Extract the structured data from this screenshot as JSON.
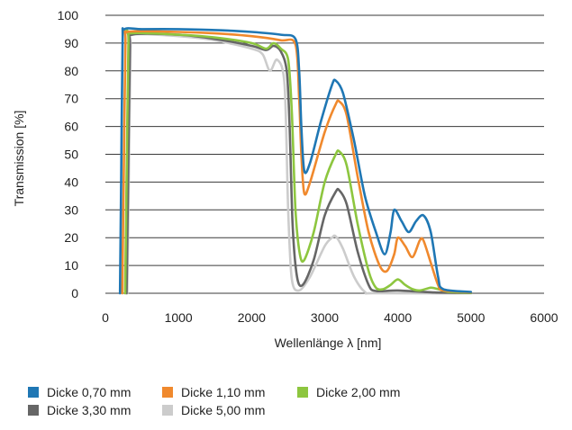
{
  "chart_data": {
    "type": "line",
    "title": "",
    "xlabel": "Wellenlänge λ [nm]",
    "ylabel": "Transmission [%]",
    "xlim": [
      0,
      6000
    ],
    "ylim": [
      0,
      100
    ],
    "x_ticks": [
      0,
      1000,
      2000,
      3000,
      4000,
      5000,
      6000
    ],
    "y_ticks": [
      0,
      10,
      20,
      30,
      40,
      50,
      60,
      70,
      80,
      90,
      100
    ],
    "x_tick_labels": [
      "0",
      "1000",
      "2000",
      "3000",
      "4000",
      "5000",
      "6000"
    ],
    "y_tick_labels": [
      "0",
      "10",
      "20",
      "30",
      "40",
      "50",
      "60",
      "70",
      "80",
      "90",
      "100"
    ],
    "grid": "horizontal",
    "legend_position": "bottom-left",
    "series": [
      {
        "name": "Dicke 0,70 mm",
        "color": "#1f77b4",
        "points": [
          [
            200,
            0
          ],
          [
            215,
            40
          ],
          [
            235,
            90
          ],
          [
            260,
            95
          ],
          [
            500,
            95
          ],
          [
            1000,
            95
          ],
          [
            1500,
            94.7
          ],
          [
            2000,
            94
          ],
          [
            2400,
            93
          ],
          [
            2600,
            91.5
          ],
          [
            2650,
            80
          ],
          [
            2680,
            60
          ],
          [
            2720,
            44
          ],
          [
            2800,
            47
          ],
          [
            2950,
            62
          ],
          [
            3100,
            75
          ],
          [
            3150,
            76.5
          ],
          [
            3250,
            72
          ],
          [
            3400,
            55
          ],
          [
            3550,
            35
          ],
          [
            3700,
            22
          ],
          [
            3820,
            14
          ],
          [
            3900,
            22
          ],
          [
            3950,
            30
          ],
          [
            4050,
            26
          ],
          [
            4150,
            22
          ],
          [
            4250,
            26
          ],
          [
            4350,
            28
          ],
          [
            4450,
            22
          ],
          [
            4550,
            6
          ],
          [
            4620,
            1.5
          ],
          [
            5000,
            0.5
          ]
        ]
      },
      {
        "name": "Dicke 1,10 mm",
        "color": "#f0892d",
        "points": [
          [
            230,
            0
          ],
          [
            250,
            40
          ],
          [
            275,
            90
          ],
          [
            300,
            94
          ],
          [
            1000,
            94
          ],
          [
            1500,
            93.5
          ],
          [
            2000,
            92.5
          ],
          [
            2400,
            91
          ],
          [
            2600,
            89.5
          ],
          [
            2650,
            70
          ],
          [
            2680,
            50
          ],
          [
            2720,
            36
          ],
          [
            2800,
            40
          ],
          [
            3000,
            58
          ],
          [
            3150,
            68
          ],
          [
            3200,
            69
          ],
          [
            3300,
            64
          ],
          [
            3450,
            42
          ],
          [
            3600,
            22
          ],
          [
            3750,
            10
          ],
          [
            3850,
            8
          ],
          [
            3950,
            14
          ],
          [
            4000,
            20
          ],
          [
            4100,
            17
          ],
          [
            4200,
            13
          ],
          [
            4300,
            19
          ],
          [
            4350,
            19
          ],
          [
            4450,
            11
          ],
          [
            4550,
            3
          ],
          [
            4620,
            1
          ],
          [
            5000,
            0.4
          ]
        ]
      },
      {
        "name": "Dicke 2,00 mm",
        "color": "#8dc63f",
        "points": [
          [
            270,
            0
          ],
          [
            290,
            40
          ],
          [
            315,
            90
          ],
          [
            340,
            93.5
          ],
          [
            1000,
            93
          ],
          [
            1500,
            92
          ],
          [
            2000,
            90
          ],
          [
            2200,
            88
          ],
          [
            2300,
            90
          ],
          [
            2400,
            88
          ],
          [
            2500,
            84
          ],
          [
            2550,
            65
          ],
          [
            2600,
            30
          ],
          [
            2660,
            14
          ],
          [
            2720,
            12
          ],
          [
            2850,
            22
          ],
          [
            3000,
            40
          ],
          [
            3150,
            50
          ],
          [
            3200,
            51
          ],
          [
            3300,
            46
          ],
          [
            3450,
            25
          ],
          [
            3600,
            8
          ],
          [
            3700,
            2
          ],
          [
            3800,
            1.5
          ],
          [
            3900,
            3
          ],
          [
            4000,
            5
          ],
          [
            4100,
            3
          ],
          [
            4200,
            1.5
          ],
          [
            4300,
            1
          ],
          [
            4450,
            2
          ],
          [
            4550,
            1.5
          ],
          [
            4700,
            0.5
          ],
          [
            5000,
            0.2
          ]
        ]
      },
      {
        "name": "Dicke 3,30 mm",
        "color": "#666666",
        "points": [
          [
            290,
            0
          ],
          [
            310,
            40
          ],
          [
            335,
            88
          ],
          [
            360,
            93
          ],
          [
            1000,
            93
          ],
          [
            1500,
            91.5
          ],
          [
            2000,
            89
          ],
          [
            2200,
            87.5
          ],
          [
            2300,
            89
          ],
          [
            2400,
            87
          ],
          [
            2480,
            80
          ],
          [
            2520,
            60
          ],
          [
            2560,
            25
          ],
          [
            2620,
            6
          ],
          [
            2700,
            3
          ],
          [
            2850,
            12
          ],
          [
            3000,
            28
          ],
          [
            3150,
            36.5
          ],
          [
            3200,
            37
          ],
          [
            3300,
            32
          ],
          [
            3450,
            15
          ],
          [
            3600,
            3
          ],
          [
            3700,
            0.8
          ],
          [
            4000,
            1
          ],
          [
            4500,
            0.3
          ],
          [
            5000,
            0.1
          ]
        ]
      },
      {
        "name": "Dicke 5,00 mm",
        "color": "#cccccc",
        "points": [
          [
            300,
            0
          ],
          [
            320,
            40
          ],
          [
            345,
            88
          ],
          [
            370,
            93
          ],
          [
            1000,
            92.5
          ],
          [
            1500,
            91
          ],
          [
            2000,
            88
          ],
          [
            2150,
            86
          ],
          [
            2250,
            80
          ],
          [
            2350,
            84
          ],
          [
            2450,
            75
          ],
          [
            2500,
            30
          ],
          [
            2550,
            5
          ],
          [
            2650,
            1
          ],
          [
            2800,
            6
          ],
          [
            3000,
            17
          ],
          [
            3100,
            20
          ],
          [
            3150,
            20.5
          ],
          [
            3250,
            16
          ],
          [
            3400,
            6
          ],
          [
            3550,
            0.5
          ],
          [
            3700,
            0
          ],
          [
            5000,
            0
          ]
        ]
      }
    ]
  }
}
